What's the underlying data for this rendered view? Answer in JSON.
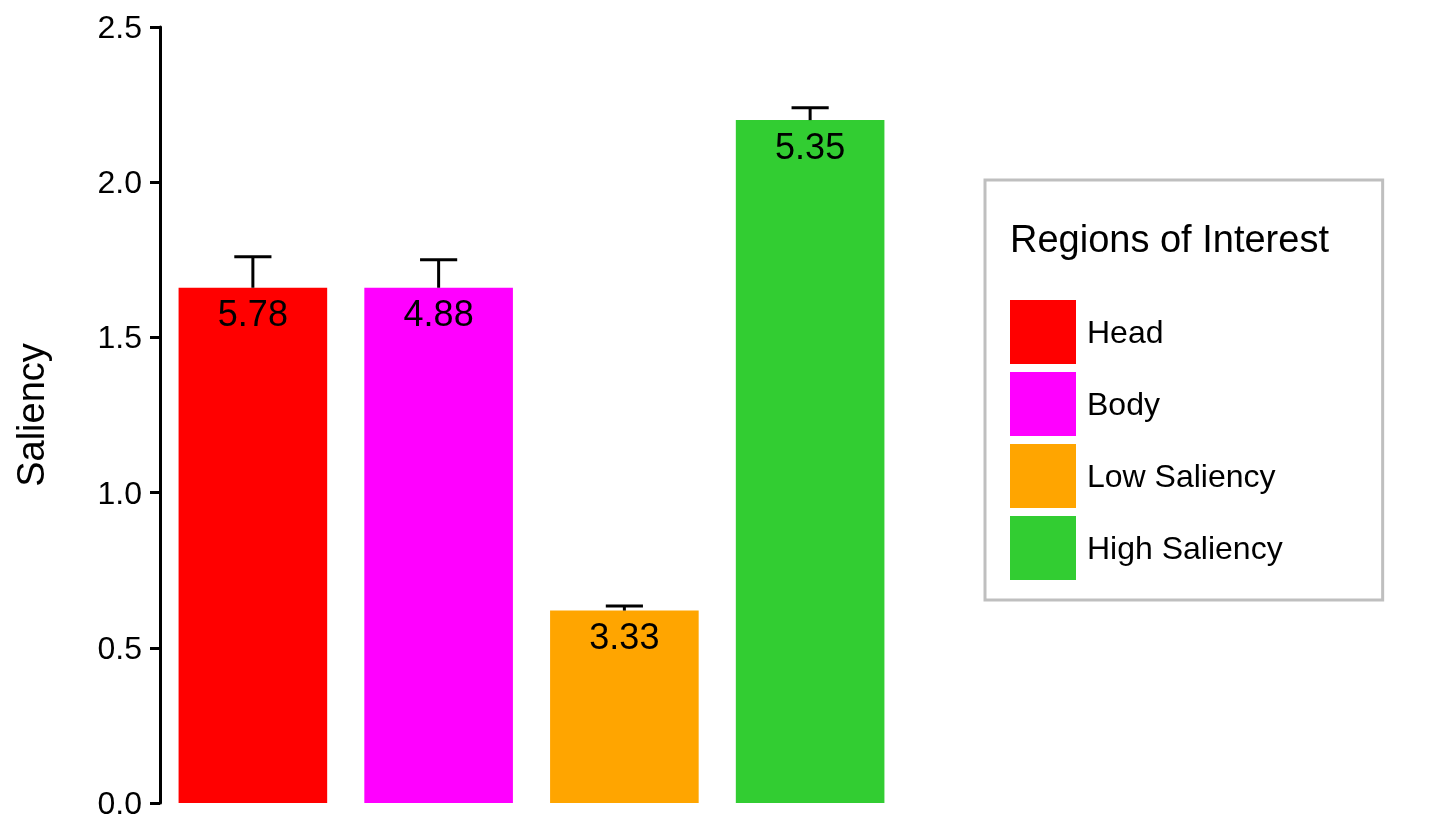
{
  "chart_data": {
    "type": "bar",
    "stacked": true,
    "ylabel": "Saliency",
    "legend_title": "Regions of Interest",
    "legend": "right",
    "tick_labels": "y",
    "grid": false,
    "categories": [
      null,
      null,
      null,
      null
    ],
    "series": [
      {
        "name": "Head",
        "color": "#ff0000",
        "values": [
          1.66,
          null,
          null,
          null
        ],
        "errors": [
          0.1,
          null,
          null,
          null
        ]
      },
      {
        "name": "Body",
        "color": "#ff00ff",
        "values": [
          null,
          1.66,
          null,
          null
        ],
        "errors": [
          null,
          0.09,
          null,
          null
        ]
      },
      {
        "name": "Low Saliency",
        "color": "#ffa500",
        "values": [
          null,
          null,
          0.62,
          null
        ],
        "errors": [
          null,
          null,
          0.015,
          null
        ]
      },
      {
        "name": "High Saliency",
        "color": "#32cd32",
        "values": [
          null,
          null,
          null,
          2.2
        ],
        "errors": [
          null,
          null,
          null,
          0.04
        ]
      }
    ],
    "annotations": [
      {
        "text": "5.78",
        "y": 1.66
      },
      {
        "text": "4.88",
        "y": 1.66
      },
      {
        "text": "3.33",
        "y": 0.62
      },
      {
        "text": "5.35",
        "y": 2.2
      }
    ],
    "ylim": [
      0,
      2.5
    ],
    "yticks": [
      {
        "value": 0,
        "label": "0.0"
      },
      {
        "value": 0.5,
        "label": "0.5"
      },
      {
        "value": 1,
        "label": "1.0"
      },
      {
        "value": 1.5,
        "label": "1.5"
      },
      {
        "value": 2,
        "label": "2.0"
      },
      {
        "value": 2.5,
        "label": "2.5"
      }
    ]
  }
}
